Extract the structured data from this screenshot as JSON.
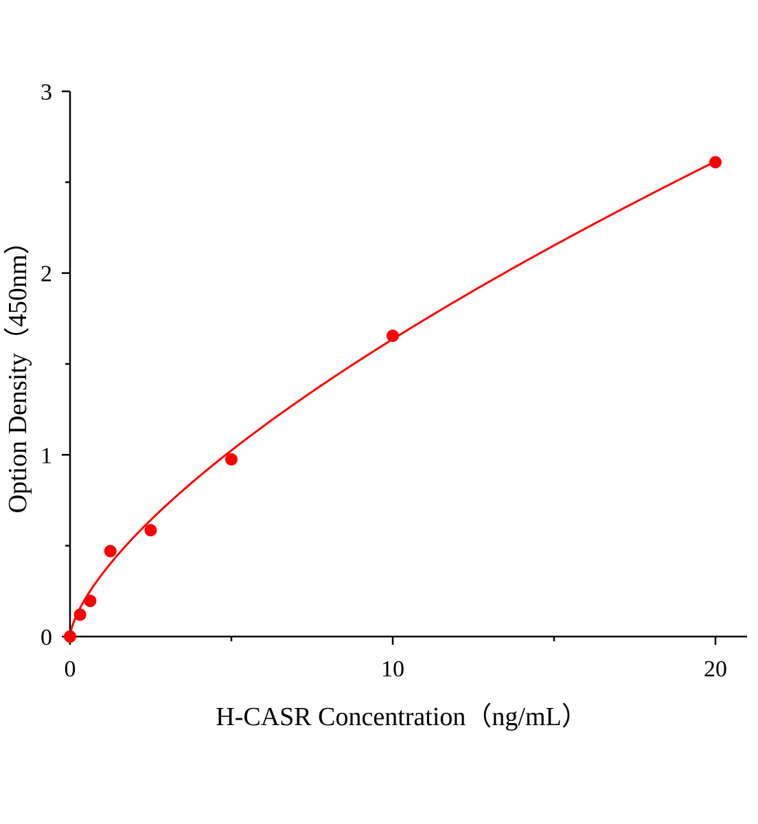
{
  "chart_data": {
    "type": "scatter",
    "title": "",
    "xlabel": "H-CASR Concentration（ng/mL）",
    "ylabel": "Option Density（450nm）",
    "xlim": [
      0,
      21
    ],
    "ylim": [
      0,
      3
    ],
    "xticks": [
      0,
      10,
      20
    ],
    "xtick_labels": [
      "0",
      "10",
      "20"
    ],
    "x_minor_ticks": [
      5,
      15
    ],
    "yticks": [
      0,
      1,
      2,
      3
    ],
    "ytick_labels": [
      "0",
      "1",
      "2",
      "3"
    ],
    "y_minor_ticks": [
      0.5,
      1.5,
      2.5
    ],
    "grid": false,
    "series": [
      {
        "x": [
          0,
          0.3125,
          0.625,
          1.25,
          2.5,
          5,
          10,
          20
        ],
        "y": [
          0.0,
          0.12,
          0.196,
          0.47,
          0.585,
          0.975,
          1.655,
          2.61
        ],
        "color": "#ff0000",
        "fit": "curve"
      }
    ]
  }
}
